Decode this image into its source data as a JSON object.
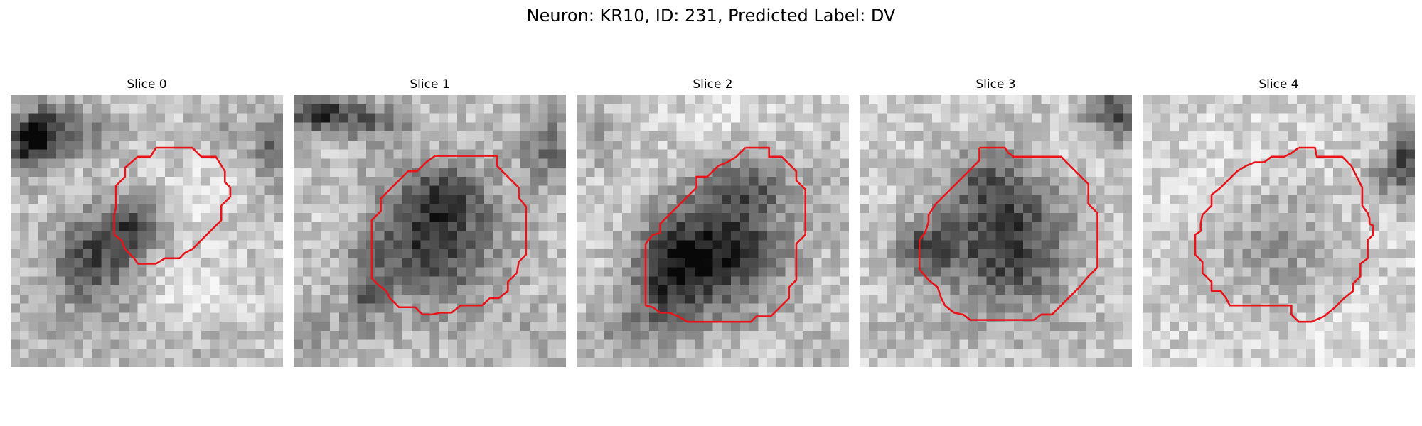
{
  "figure": {
    "title": "Neuron: KR10, ID: 231, Predicted Label: DV"
  },
  "colors": {
    "contour": "#e8141a",
    "background": "#ffffff"
  },
  "panels": [
    {
      "title": "Slice 0"
    },
    {
      "title": "Slice 1"
    },
    {
      "title": "Slice 2"
    },
    {
      "title": "Slice 3"
    },
    {
      "title": "Slice 4"
    }
  ]
}
